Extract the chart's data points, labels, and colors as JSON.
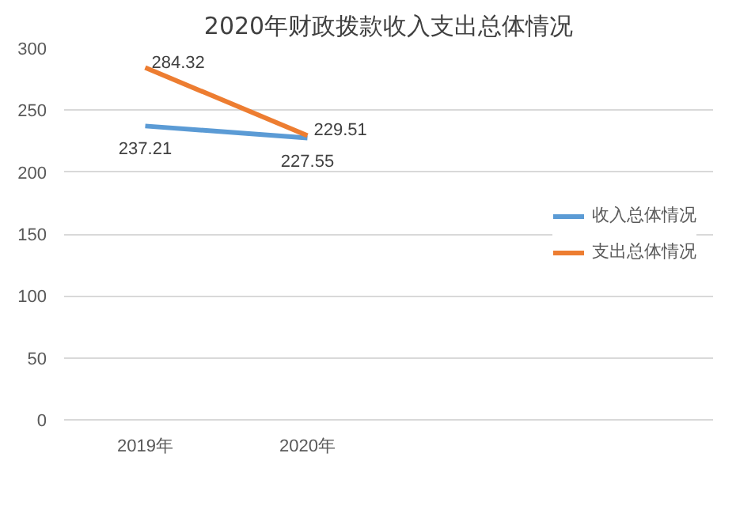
{
  "chart_data": {
    "type": "line",
    "title": "2020年财政拨款收入支出总体情况",
    "categories": [
      "2019年",
      "2020年",
      null,
      null
    ],
    "series": [
      {
        "name": "收入总体情况",
        "color": "#5b9bd5",
        "values": [
          237.21,
          227.55,
          null,
          null
        ]
      },
      {
        "name": "支出总体情况",
        "color": "#ed7d31",
        "values": [
          284.32,
          229.51,
          null,
          null
        ]
      }
    ],
    "ylim": [
      0,
      300
    ],
    "yticks": [
      0,
      50,
      100,
      150,
      200,
      250,
      300
    ],
    "grid": "y",
    "legend": "right",
    "data_labels": true,
    "marker": "none",
    "line_style": "solid"
  }
}
